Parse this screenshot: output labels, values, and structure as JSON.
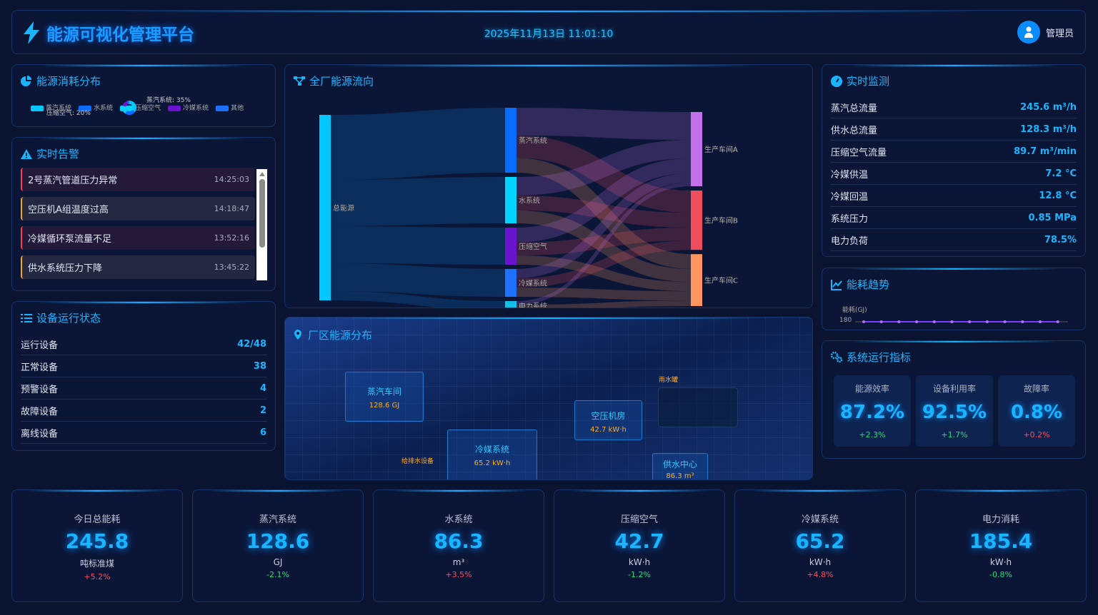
{
  "header": {
    "title": "能源可视化管理平台",
    "datetime": "2025年11月13日 11:01:10",
    "user": "管理员"
  },
  "colors": {
    "accent": "#19b5ff",
    "panel": "#0b1637",
    "bg": "#0a1430",
    "up": "#ff4d5e",
    "down": "#22dd77"
  },
  "distribution": {
    "title": "能源消耗分布",
    "chart_data": {
      "type": "pie",
      "series": [
        {
          "name": "蒸汽系统",
          "value": 35,
          "color": "#00c8ff"
        },
        {
          "name": "水系统",
          "value": 25,
          "color": "#0a6cff"
        },
        {
          "name": "压缩空气",
          "value": 20,
          "color": "#00d4ff"
        },
        {
          "name": "冷媒系统",
          "value": 15,
          "color": "#6a14d0"
        },
        {
          "name": "其他",
          "value": 5,
          "color": "#2070ff"
        }
      ],
      "labels": [
        "蒸汽系统: 35%",
        "压缩空气: 20%"
      ],
      "legend": "top"
    }
  },
  "alerts": {
    "title": "实时告警",
    "items": [
      {
        "text": "2号蒸汽管道压力异常",
        "time": "14:25:03",
        "level": "danger"
      },
      {
        "text": "空压机A组温度过高",
        "time": "14:18:47",
        "level": "warning"
      },
      {
        "text": "冷媒循环泵流量不足",
        "time": "13:52:16",
        "level": "danger"
      },
      {
        "text": "供水系统压力下降",
        "time": "13:45:22",
        "level": "warning"
      }
    ]
  },
  "devices": {
    "title": "设备运行状态",
    "items": [
      {
        "label": "运行设备",
        "value": "42/48"
      },
      {
        "label": "正常设备",
        "value": "38"
      },
      {
        "label": "预警设备",
        "value": "4"
      },
      {
        "label": "故障设备",
        "value": "2"
      },
      {
        "label": "离线设备",
        "value": "6"
      }
    ]
  },
  "flow": {
    "title": "全厂能源流向",
    "chart_data": {
      "type": "sankey",
      "nodes": [
        {
          "name": "总能源",
          "color": "#00c8ff"
        },
        {
          "name": "蒸汽系统",
          "color": "#0a6cff"
        },
        {
          "name": "水系统",
          "color": "#00d4ff"
        },
        {
          "name": "压缩空气",
          "color": "#6a14d0"
        },
        {
          "name": "冷媒系统",
          "color": "#2070ff"
        },
        {
          "name": "电力系统",
          "color": "#12c0e8"
        },
        {
          "name": "生产车间A",
          "color": "#c070e8"
        },
        {
          "name": "生产车间B",
          "color": "#f04e5e"
        },
        {
          "name": "生产车间C",
          "color": "#ff9560"
        }
      ],
      "links": [
        [
          "总能源",
          "蒸汽系统",
          35
        ],
        [
          "总能源",
          "水系统",
          25
        ],
        [
          "总能源",
          "压缩空气",
          20
        ],
        [
          "总能源",
          "冷媒系统",
          15
        ],
        [
          "总能源",
          "电力系统",
          5
        ],
        [
          "蒸汽系统",
          "生产车间A",
          15
        ],
        [
          "蒸汽系统",
          "生产车间B",
          12
        ],
        [
          "蒸汽系统",
          "生产车间C",
          8
        ],
        [
          "水系统",
          "生产车间A",
          10
        ],
        [
          "水系统",
          "生产车间B",
          8
        ],
        [
          "水系统",
          "生产车间C",
          7
        ],
        [
          "压缩空气",
          "生产车间A",
          8
        ],
        [
          "压缩空气",
          "生产车间B",
          7
        ],
        [
          "压缩空气",
          "生产车间C",
          5
        ],
        [
          "冷媒系统",
          "生产车间A",
          5
        ],
        [
          "冷媒系统",
          "生产车间B",
          5
        ],
        [
          "冷媒系统",
          "生产车间C",
          5
        ],
        [
          "电力系统",
          "生产车间A",
          2
        ],
        [
          "电力系统",
          "生产车间C",
          3
        ]
      ]
    }
  },
  "map": {
    "title": "厂区能源分布",
    "areas": [
      {
        "name": "蒸汽车间",
        "value": "128.6 GJ"
      },
      {
        "name": "空压机房",
        "value": "42.7 kW·h"
      },
      {
        "name": "冷媒系统",
        "value": "65.2 kW·h"
      },
      {
        "name": "供水中心",
        "value": "86.3 m³"
      }
    ],
    "tags": [
      "给排水设备",
      "雨水罐"
    ]
  },
  "monitor": {
    "title": "实时监测",
    "items": [
      {
        "label": "蒸汽总流量",
        "value": "245.6 m³/h"
      },
      {
        "label": "供水总流量",
        "value": "128.3 m³/h"
      },
      {
        "label": "压缩空气流量",
        "value": "89.7 m³/min"
      },
      {
        "label": "冷媒供温",
        "value": "7.2 °C"
      },
      {
        "label": "冷媒回温",
        "value": "12.8 °C"
      },
      {
        "label": "系统压力",
        "value": "0.85 MPa"
      },
      {
        "label": "电力负荷",
        "value": "78.5%"
      }
    ]
  },
  "trend": {
    "title": "能耗趋势",
    "chart_data": {
      "type": "line",
      "ylabel": "能耗(GJ)",
      "yticks": [
        "180"
      ],
      "values": [
        180,
        180,
        180,
        180,
        180,
        180,
        180,
        180,
        180,
        180,
        180,
        180
      ],
      "color": "#7a3cff"
    }
  },
  "indicators": {
    "title": "系统运行指标",
    "items": [
      {
        "label": "能源效率",
        "value": "87.2%",
        "change": "+2.3%",
        "dir": "down"
      },
      {
        "label": "设备利用率",
        "value": "92.5%",
        "change": "+1.7%",
        "dir": "down"
      },
      {
        "label": "故障率",
        "value": "0.8%",
        "change": "+0.2%",
        "dir": "up"
      }
    ]
  },
  "kpis": [
    {
      "label": "今日总能耗",
      "value": "245.8",
      "unit": "吨标准煤",
      "change": "+5.2%",
      "dir": "up"
    },
    {
      "label": "蒸汽系统",
      "value": "128.6",
      "unit": "GJ",
      "change": "-2.1%",
      "dir": "down"
    },
    {
      "label": "水系统",
      "value": "86.3",
      "unit": "m³",
      "change": "+3.5%",
      "dir": "up"
    },
    {
      "label": "压缩空气",
      "value": "42.7",
      "unit": "kW·h",
      "change": "-1.2%",
      "dir": "down"
    },
    {
      "label": "冷媒系统",
      "value": "65.2",
      "unit": "kW·h",
      "change": "+4.8%",
      "dir": "up"
    },
    {
      "label": "电力消耗",
      "value": "185.4",
      "unit": "kW·h",
      "change": "-0.8%",
      "dir": "down"
    }
  ]
}
